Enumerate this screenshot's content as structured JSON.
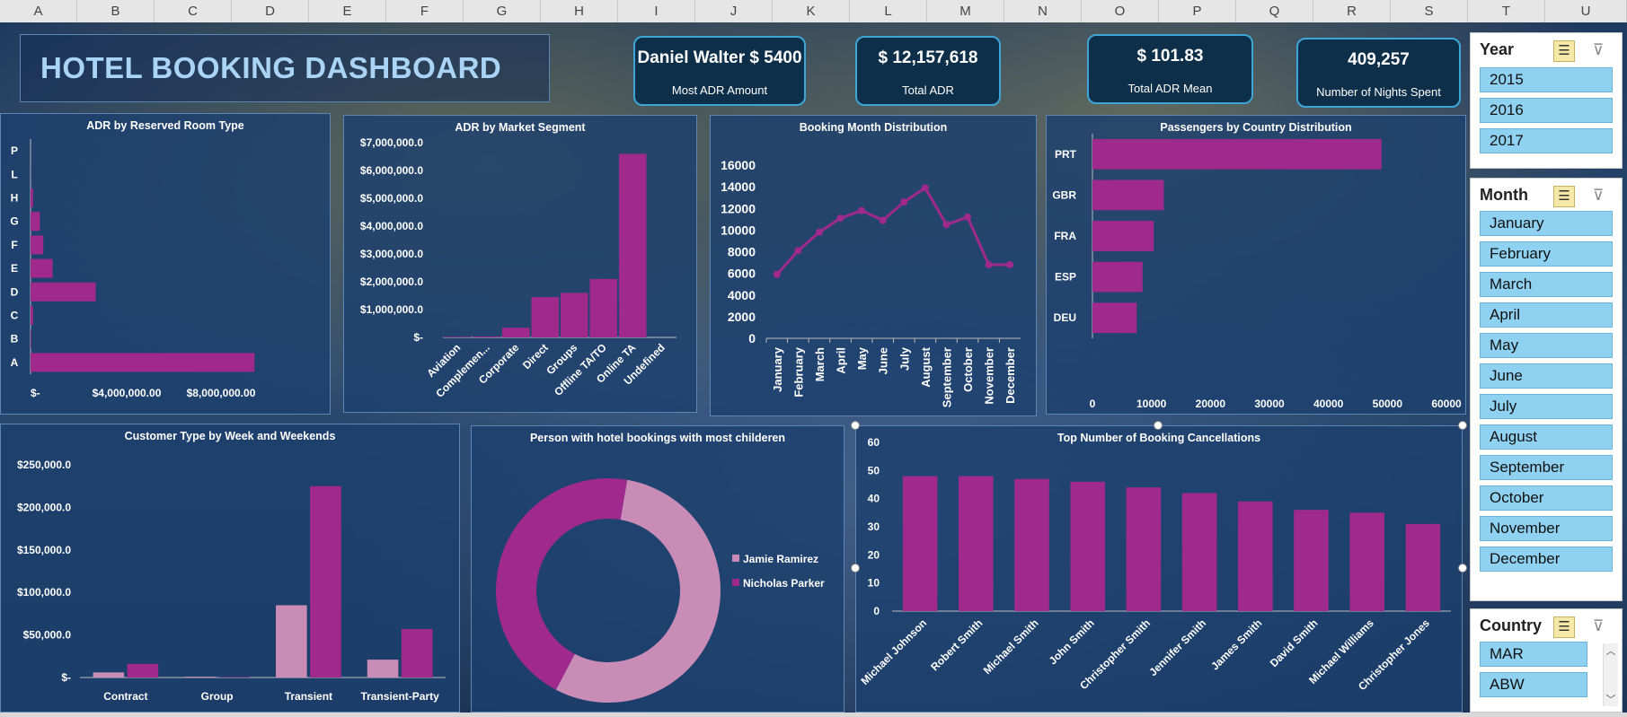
{
  "columns": [
    "A",
    "B",
    "C",
    "D",
    "E",
    "F",
    "G",
    "H",
    "I",
    "J",
    "K",
    "L",
    "M",
    "N",
    "O",
    "P",
    "Q",
    "R",
    "S",
    "T",
    "U"
  ],
  "title": "HOTEL BOOKING DASHBOARD",
  "kpis": [
    {
      "value": "Daniel Walter $ 5400",
      "label": "Most ADR Amount"
    },
    {
      "value": "$ 12,157,618",
      "label": "Total ADR"
    },
    {
      "value": "$ 101.83",
      "label": "Total ADR Mean"
    },
    {
      "value": "409,257",
      "label": "Number of Nights Spent"
    }
  ],
  "colors": {
    "bar": "#a0298e",
    "bar_light": "#c88cb6",
    "accent": "#3ea6d7"
  },
  "icons": {
    "multiselect": "multi-select-icon",
    "clear_filter": "clear-filter-icon"
  },
  "slicers": {
    "year": {
      "title": "Year",
      "items": [
        "2015",
        "2016",
        "2017"
      ]
    },
    "month": {
      "title": "Month",
      "items": [
        "January",
        "February",
        "March",
        "April",
        "May",
        "June",
        "July",
        "August",
        "September",
        "October",
        "November",
        "December"
      ]
    },
    "country": {
      "title": "Country",
      "items": [
        "MAR",
        "ABW"
      ]
    }
  },
  "chart_data": [
    {
      "type": "bar",
      "orientation": "horizontal",
      "title": "ADR by Reserved Room Type",
      "categories": [
        "A",
        "B",
        "C",
        "D",
        "E",
        "F",
        "G",
        "H",
        "L",
        "P"
      ],
      "values": [
        7900000,
        20000,
        90000,
        2300000,
        780000,
        450000,
        330000,
        90000,
        4000,
        0
      ],
      "xticks": [
        "$-",
        "$4,000,000.00",
        "$8,000,000.00"
      ],
      "xlim": [
        0,
        8000000
      ]
    },
    {
      "type": "bar",
      "title": "ADR by Market Segment",
      "categories": [
        "Aviation",
        "Complemen...",
        "Corporate",
        "Direct",
        "Groups",
        "Offline TA/TO",
        "Online TA",
        "Undefined"
      ],
      "values": [
        20000,
        30000,
        350000,
        1450000,
        1600000,
        2100000,
        6600000,
        0
      ],
      "yticks": [
        "$-",
        "$1,000,000.0",
        "$2,000,000.0",
        "$3,000,000.0",
        "$4,000,000.0",
        "$5,000,000.0",
        "$6,000,000.0",
        "$7,000,000.0"
      ],
      "ylim": [
        0,
        7000000
      ]
    },
    {
      "type": "line",
      "title": "Booking Month Distribution",
      "categories": [
        "January",
        "February",
        "March",
        "April",
        "May",
        "June",
        "July",
        "August",
        "September",
        "October",
        "November",
        "December"
      ],
      "values": [
        5900,
        8100,
        9800,
        11100,
        11800,
        10900,
        12600,
        13900,
        10500,
        11200,
        6800,
        6800
      ],
      "yticks": [
        "0",
        "2000",
        "4000",
        "6000",
        "8000",
        "10000",
        "12000",
        "14000",
        "16000"
      ],
      "ylim": [
        0,
        16000
      ]
    },
    {
      "type": "bar",
      "orientation": "horizontal",
      "title": "Passengers by Country Distribution",
      "categories": [
        "DEU",
        "ESP",
        "FRA",
        "GBR",
        "PRT"
      ],
      "values": [
        7500,
        8500,
        10400,
        12100,
        49000
      ],
      "xticks": [
        "0",
        "10000",
        "20000",
        "30000",
        "40000",
        "50000",
        "60000"
      ],
      "xlim": [
        0,
        60000
      ]
    },
    {
      "type": "bar",
      "title": "Customer Type by Week and Weekends",
      "categories": [
        "Contract",
        "Group",
        "Transient",
        "Transient-Party"
      ],
      "series": [
        {
          "values": [
            6000,
            1000,
            85000,
            21000
          ]
        },
        {
          "values": [
            16000,
            500,
            225000,
            57000
          ]
        }
      ],
      "yticks": [
        "$-",
        "$50,000.0",
        "$100,000.0",
        "$150,000.0",
        "$200,000.0",
        "$250,000.0"
      ],
      "ylim": [
        0,
        250000
      ]
    },
    {
      "type": "pie",
      "title": "Person with hotel bookings with most childeren",
      "labels": [
        "Jamie Ramirez",
        "Nicholas Parker"
      ],
      "values": [
        55,
        45
      ]
    },
    {
      "type": "bar",
      "title": "Top Number of Booking Cancellations",
      "categories": [
        "Michael Johnson",
        "Robert Smith",
        "Michael Smith",
        "John Smith",
        "Christopher Smith",
        "Jennifer Smith",
        "James Smith",
        "David Smith",
        "Michael Williams",
        "Christopher Jones"
      ],
      "values": [
        48,
        48,
        47,
        46,
        44,
        42,
        39,
        36,
        35,
        31
      ],
      "yticks": [
        "0",
        "10",
        "20",
        "30",
        "40",
        "50",
        "60"
      ],
      "ylim": [
        0,
        60
      ]
    }
  ]
}
